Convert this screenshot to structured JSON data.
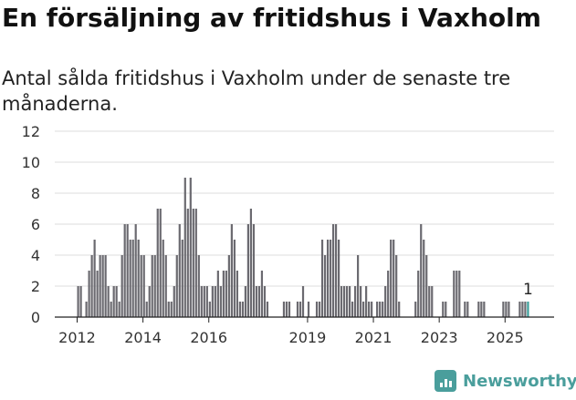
{
  "title": "En försäljning av fritidshus i Vaxholm",
  "subtitle": "Antal sålda fritidshus i Vaxholm under de senaste tre månaderna.",
  "brand": {
    "name": "Newsworthy",
    "icon": "bar-chart-logo-icon",
    "color": "#4a9e9c"
  },
  "chart_data": {
    "type": "bar",
    "ylim": [
      0,
      12
    ],
    "yticks": [
      0,
      2,
      4,
      6,
      8,
      10,
      12
    ],
    "xticks": [
      "2012",
      "2014",
      "2016",
      "2019",
      "2021",
      "2023",
      "2025"
    ],
    "x_start": "2012-01",
    "grid": true,
    "bar_color": "#6b6a70",
    "highlight_color": "#3a9e9a",
    "highlight_label": "1",
    "values": [
      2,
      2,
      0,
      1,
      3,
      4,
      5,
      3,
      4,
      4,
      4,
      2,
      1,
      2,
      2,
      1,
      4,
      6,
      6,
      5,
      5,
      6,
      5,
      4,
      4,
      1,
      2,
      4,
      4,
      7,
      7,
      5,
      4,
      1,
      1,
      2,
      4,
      6,
      5,
      9,
      7,
      9,
      7,
      7,
      4,
      2,
      2,
      2,
      1,
      2,
      2,
      3,
      2,
      3,
      3,
      4,
      6,
      5,
      3,
      1,
      1,
      2,
      6,
      7,
      6,
      2,
      2,
      3,
      2,
      1,
      0,
      0,
      0,
      0,
      0,
      1,
      1,
      1,
      0,
      0,
      1,
      1,
      2,
      0,
      1,
      0,
      0,
      1,
      1,
      5,
      4,
      5,
      5,
      6,
      6,
      5,
      2,
      2,
      2,
      2,
      1,
      2,
      4,
      2,
      1,
      2,
      1,
      1,
      0,
      1,
      1,
      1,
      2,
      3,
      5,
      5,
      4,
      1,
      0,
      0,
      0,
      0,
      0,
      1,
      3,
      6,
      5,
      4,
      2,
      2,
      0,
      0,
      0,
      1,
      1,
      0,
      0,
      3,
      3,
      3,
      0,
      1,
      1,
      0,
      0,
      0,
      1,
      1,
      1,
      0,
      0,
      0,
      0,
      0,
      0,
      1,
      1,
      1,
      0,
      0,
      0,
      1,
      1,
      1,
      1
    ]
  }
}
